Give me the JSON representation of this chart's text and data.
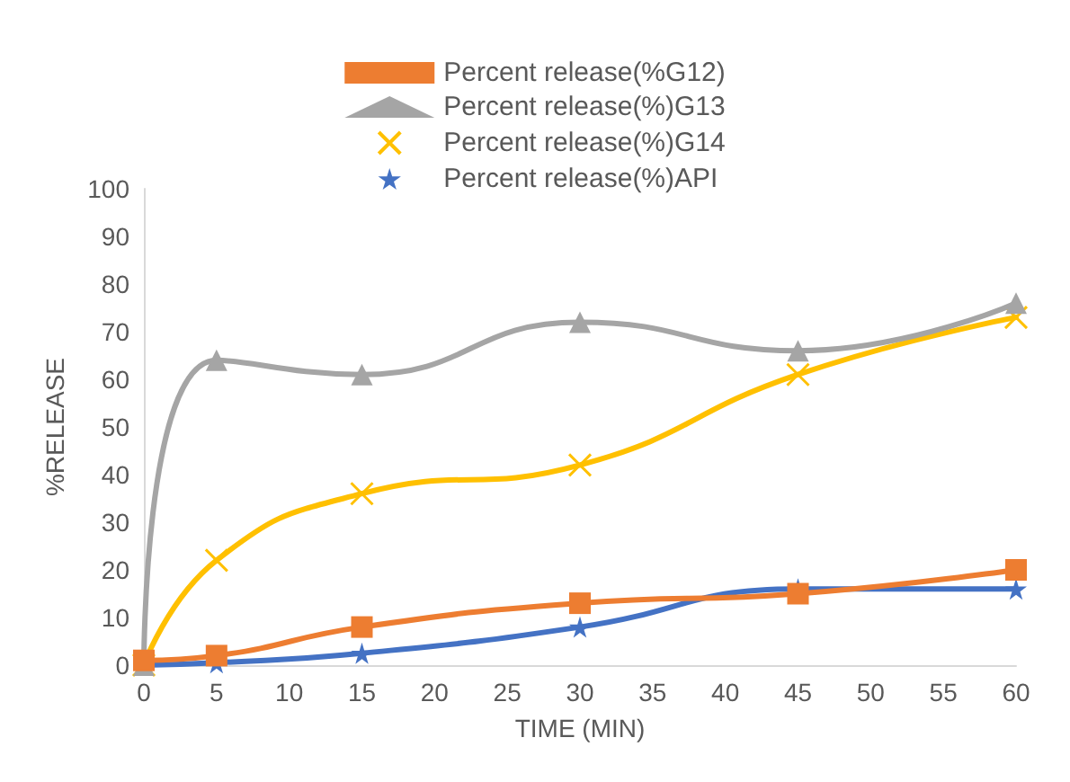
{
  "chart_data": {
    "type": "line",
    "xlabel": "TIME (MIN)",
    "ylabel": "%RELEASE",
    "x": [
      0,
      5,
      15,
      30,
      45,
      60
    ],
    "xlim": [
      0,
      60
    ],
    "xticks": [
      0,
      5,
      10,
      15,
      20,
      25,
      30,
      35,
      40,
      45,
      50,
      55,
      60
    ],
    "ylim": [
      0,
      100
    ],
    "yticks": [
      0,
      10,
      20,
      30,
      40,
      50,
      60,
      70,
      80,
      90,
      100
    ],
    "grid": false,
    "legend": "top",
    "series": [
      {
        "name": "Percent release(%G12)",
        "color": "#ed7d31",
        "marker": "square",
        "values": [
          1,
          2,
          8,
          13,
          15,
          20
        ]
      },
      {
        "name": "Percent release(%)G13",
        "color": "#a5a5a5",
        "marker": "triangle",
        "values": [
          0,
          64,
          61,
          72,
          66,
          76
        ]
      },
      {
        "name": "Percent release(%)G14",
        "color": "#ffc000",
        "marker": "cross",
        "values": [
          0,
          22,
          36,
          42,
          61,
          73
        ]
      },
      {
        "name": "Percent release(%)API",
        "color": "#4472c4",
        "marker": "star",
        "values": [
          0,
          0.5,
          2.5,
          8,
          16,
          16
        ]
      }
    ]
  }
}
